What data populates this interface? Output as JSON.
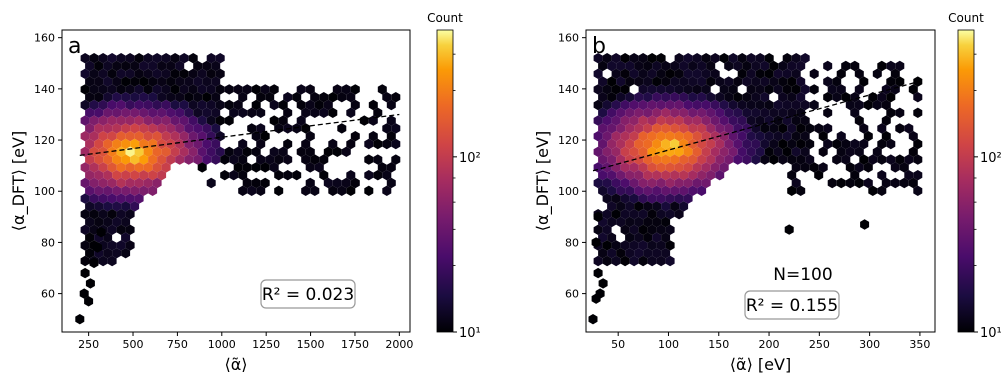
{
  "chart_data": [
    {
      "type": "hexbin",
      "panel_label": "a",
      "xlabel": "⟨α̃⟩",
      "ylabel": "⟨α_DFT⟩ [eV]",
      "xlim": [
        100,
        2060
      ],
      "ylim": [
        45,
        163
      ],
      "x_ticks": [
        250,
        500,
        750,
        1000,
        1250,
        1500,
        1750,
        2000
      ],
      "y_ticks": [
        60,
        80,
        100,
        120,
        140,
        160
      ],
      "points": [
        {
          "x": 200,
          "y": 50
        },
        {
          "x": 225,
          "y": 60
        },
        {
          "x": 250,
          "y": 57
        },
        {
          "x": 230,
          "y": 68
        },
        {
          "x": 260,
          "y": 64
        },
        {
          "x": 280,
          "y": 72
        },
        {
          "x": 300,
          "y": 78
        },
        {
          "x": 320,
          "y": 84
        }
      ],
      "hex_clusters": [
        {
          "x_range": [
            230,
            1000
          ],
          "y_range": [
            72,
            152
          ],
          "center_x": 500,
          "center_y": 115,
          "density": "high"
        },
        {
          "x_range": [
            1000,
            2000
          ],
          "y_range": [
            100,
            142
          ],
          "density": "low"
        }
      ],
      "trend_line": {
        "style": "dashed",
        "x": [
          200,
          2000
        ],
        "y": [
          114,
          130
        ]
      },
      "annotation": "R² = 0.023",
      "colorbar": {
        "title": "Count",
        "scale": "log",
        "ticks": [
          "10¹",
          "10²"
        ],
        "colormap": "inferno"
      }
    },
    {
      "type": "hexbin",
      "panel_label": "b",
      "xlabel": "⟨α̃⟩ [eV]",
      "ylabel": "⟨α_DFT⟩ [eV]",
      "xlim": [
        18,
        365
      ],
      "ylim": [
        45,
        163
      ],
      "x_ticks": [
        50,
        100,
        150,
        200,
        250,
        300,
        350
      ],
      "y_ticks": [
        60,
        80,
        100,
        120,
        140,
        160
      ],
      "points": [
        {
          "x": 25,
          "y": 50
        },
        {
          "x": 28,
          "y": 58
        },
        {
          "x": 32,
          "y": 60
        },
        {
          "x": 35,
          "y": 64
        },
        {
          "x": 30,
          "y": 68
        },
        {
          "x": 28,
          "y": 80
        },
        {
          "x": 30,
          "y": 90
        },
        {
          "x": 295,
          "y": 87
        },
        {
          "x": 220,
          "y": 85
        }
      ],
      "hex_clusters": [
        {
          "x_range": [
            30,
            240
          ],
          "y_range": [
            70,
            152
          ],
          "center_x": 100,
          "center_y": 117,
          "density": "high"
        },
        {
          "x_range": [
            200,
            350
          ],
          "y_range": [
            100,
            150
          ],
          "density": "low"
        }
      ],
      "trend_line": {
        "style": "dashed",
        "x": [
          25,
          350
        ],
        "y": [
          108,
          143
        ]
      },
      "annotation_n": "N=100",
      "annotation": "R² = 0.155",
      "colorbar": {
        "title": "Count",
        "scale": "log",
        "ticks": [
          "10¹",
          "10²"
        ],
        "colormap": "inferno"
      }
    }
  ]
}
